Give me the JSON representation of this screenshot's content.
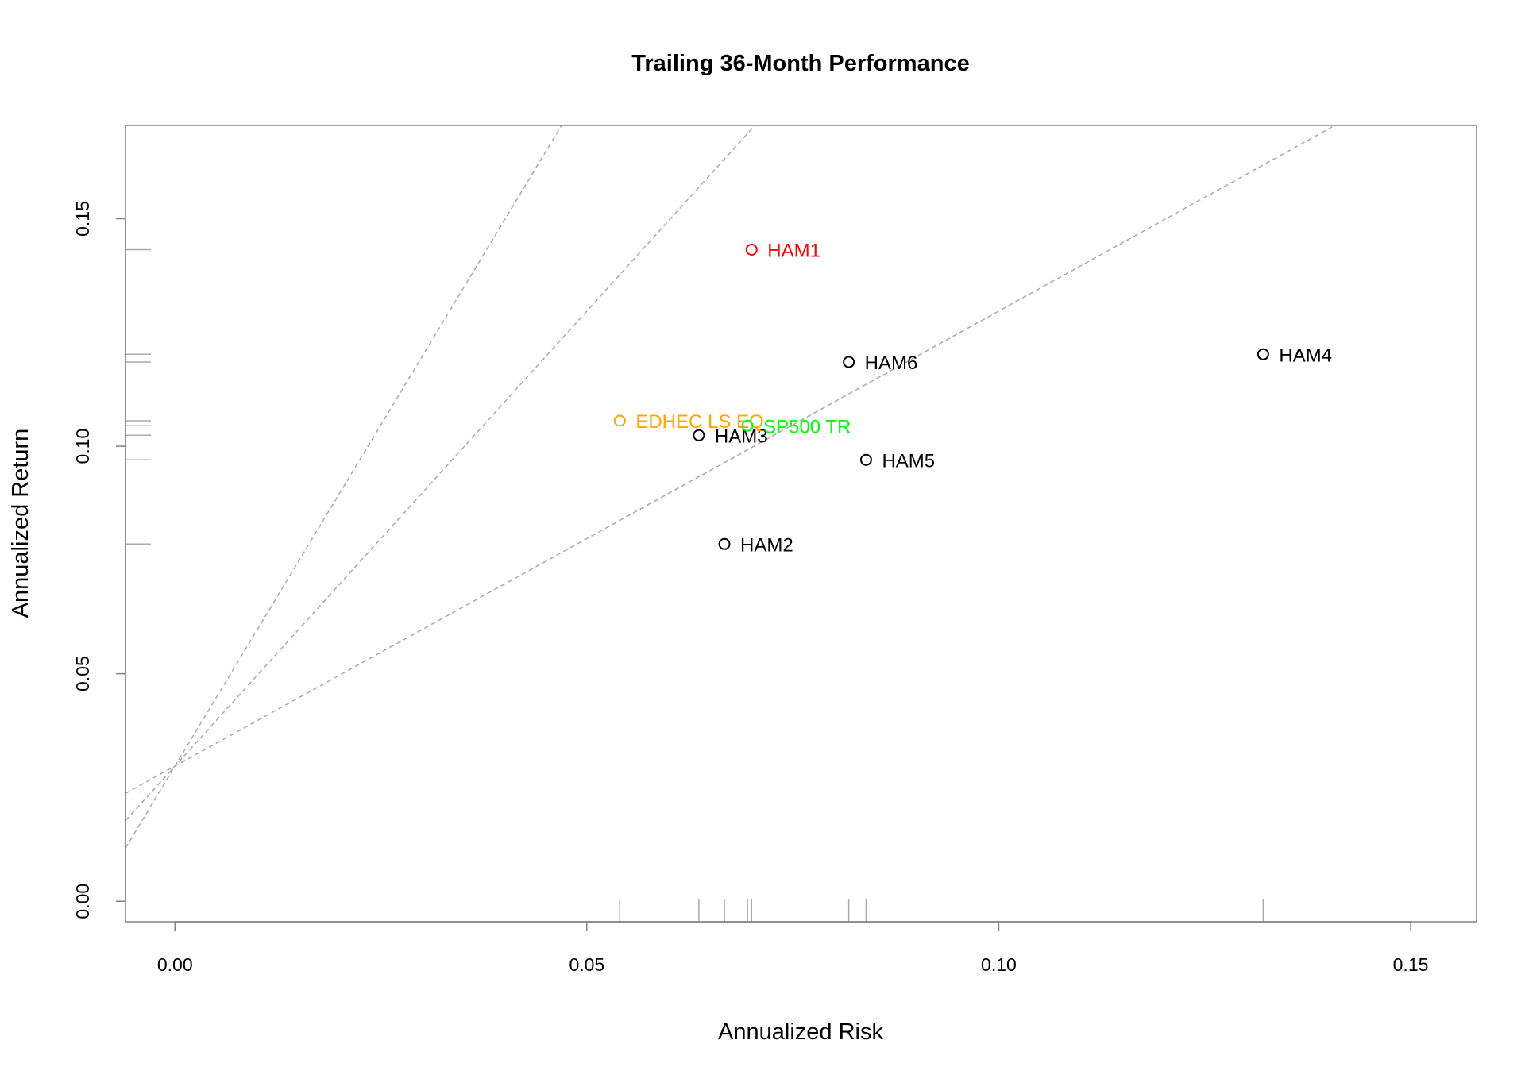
{
  "chart_data": {
    "type": "scatter",
    "title": "Trailing 36-Month Performance",
    "xlabel": "Annualized Risk",
    "ylabel": "Annualized Return",
    "xlim": [
      -0.006,
      0.158
    ],
    "ylim": [
      -0.0045,
      0.1705
    ],
    "x_ticks": [
      "0.00",
      "0.05",
      "0.10",
      "0.15"
    ],
    "y_ticks": [
      "0.00",
      "0.05",
      "0.10",
      "0.15"
    ],
    "x_tick_values": [
      0,
      0.05,
      0.1,
      0.15
    ],
    "y_tick_values": [
      0,
      0.05,
      0.1,
      0.15
    ],
    "grid": false,
    "points": [
      {
        "label": "HAM1",
        "x": 0.07,
        "y": 0.1432,
        "color": "#FF0000"
      },
      {
        "label": "HAM2",
        "x": 0.0667,
        "y": 0.0785,
        "color": "#000000"
      },
      {
        "label": "HAM3",
        "x": 0.0636,
        "y": 0.1024,
        "color": "#000000"
      },
      {
        "label": "HAM4",
        "x": 0.1321,
        "y": 0.1202,
        "color": "#000000"
      },
      {
        "label": "HAM5",
        "x": 0.0839,
        "y": 0.097,
        "color": "#000000"
      },
      {
        "label": "HAM6",
        "x": 0.0818,
        "y": 0.1185,
        "color": "#000000"
      },
      {
        "label": "EDHEC LS EQ",
        "x": 0.054,
        "y": 0.1056,
        "color": "#FFA500"
      },
      {
        "label": "SP500 TR",
        "x": 0.0695,
        "y": 0.1045,
        "color": "#00FF00"
      }
    ],
    "reference_lines": [
      {
        "intercept": 0.0297,
        "slope": 3.0
      },
      {
        "intercept": 0.0297,
        "slope": 2.0
      },
      {
        "intercept": 0.0297,
        "slope": 1.0
      }
    ],
    "reference_line_color": "#AAAAAA",
    "rug": true
  }
}
